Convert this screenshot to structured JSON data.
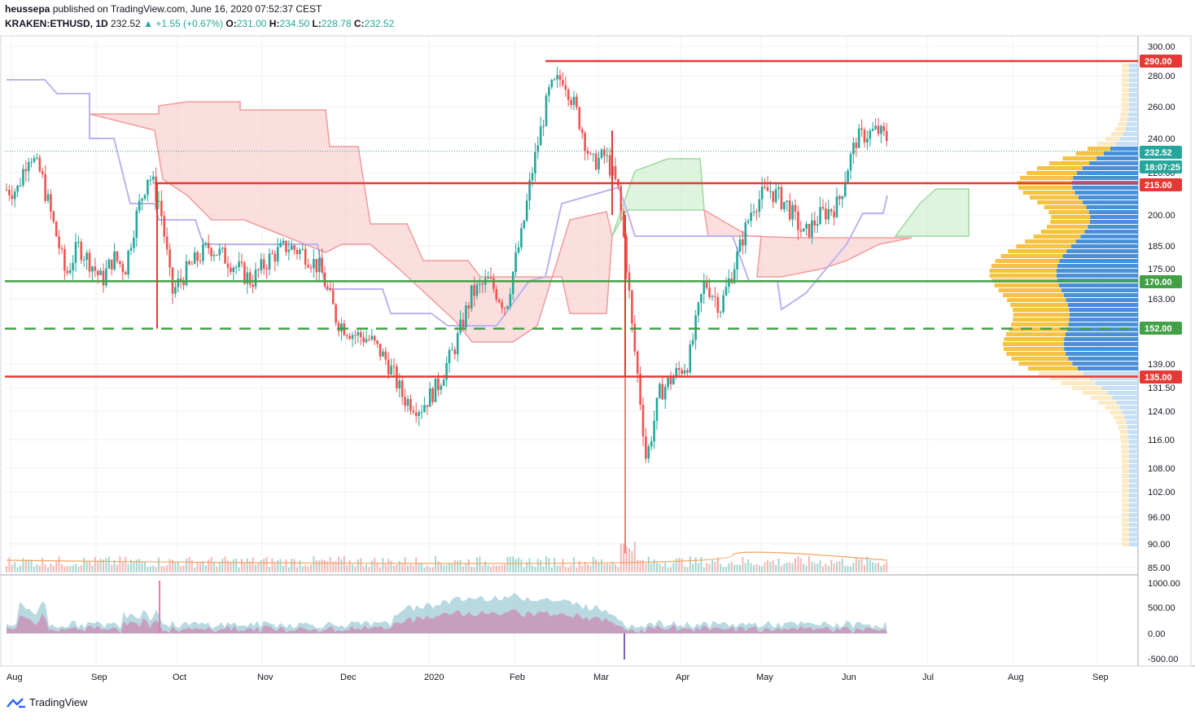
{
  "header": {
    "author": "heussepa",
    "published_text": "published on TradingView.com, June 16, 2020 07:52:37 CEST",
    "symbol": "KRAKEN:ETHUSD, 1D",
    "last": "232.52",
    "change": "+1.55 (+0.67%)",
    "o_label": "O:",
    "o_value": "231.00",
    "h_label": "H:",
    "h_value": "234.50",
    "l_label": "L:",
    "l_value": "228.78",
    "c_label": "C:",
    "c_value": "232.52"
  },
  "footer": {
    "brand": "TradingView"
  },
  "colors": {
    "up": "#26a69a",
    "down": "#ef5350",
    "level_red": "#e53935",
    "level_green": "#43a047",
    "cloud_red": "#f8c9c9",
    "cloud_green": "#c9ecc9",
    "vp_blue": "#4a90d9",
    "vp_yellow": "#f5c242"
  },
  "chart_data": {
    "type": "candlestick",
    "price_axis_ticks": [
      "300.00",
      "280.00",
      "260.00",
      "240.00",
      "220.00",
      "200.00",
      "185.00",
      "175.00",
      "163.00",
      "139.00",
      "131.50",
      "124.00",
      "116.00",
      "108.00",
      "102.00",
      "96.00",
      "90.00",
      "85.00"
    ],
    "price_tags": [
      {
        "label": "290.00",
        "kind": "level_red",
        "value": 290
      },
      {
        "label": "232.52",
        "kind": "last",
        "value": 232.52
      },
      {
        "label": "18:07:25",
        "kind": "countdown",
        "value": 226
      },
      {
        "label": "215.00",
        "kind": "level_red",
        "value": 215
      },
      {
        "label": "170.00",
        "kind": "level_green",
        "value": 170
      },
      {
        "label": "152.00",
        "kind": "level_green",
        "value": 152
      },
      {
        "label": "135.00",
        "kind": "level_red",
        "value": 135
      }
    ],
    "levels": [
      {
        "value": 290,
        "style": "solid",
        "color": "red",
        "start": "Feb"
      },
      {
        "value": 215,
        "style": "solid",
        "color": "red",
        "start": "Sep"
      },
      {
        "value": 170,
        "style": "solid",
        "color": "green",
        "start": "Aug"
      },
      {
        "value": 152,
        "style": "dashed",
        "color": "green",
        "start": "Aug"
      },
      {
        "value": 135,
        "style": "solid",
        "color": "red",
        "start": "Aug"
      }
    ],
    "x_labels": [
      "Aug",
      "Sep",
      "Oct",
      "Nov",
      "Dec",
      "2020",
      "Feb",
      "Mar",
      "Apr",
      "May",
      "Jun",
      "Jul",
      "Aug",
      "Sep"
    ],
    "osc_axis_ticks": [
      "1000.00",
      "500.00",
      "0.00",
      "-500.00"
    ],
    "close_path": [
      [
        "Aug",
        212
      ],
      [
        "Aug",
        232
      ],
      [
        "Aug",
        218
      ],
      [
        "Aug",
        195
      ],
      [
        "Aug",
        172
      ],
      [
        "Aug",
        185
      ],
      [
        "Aug",
        178
      ],
      [
        "Sep",
        170
      ],
      [
        "Sep",
        180
      ],
      [
        "Sep",
        175
      ],
      [
        "Sep",
        200
      ],
      [
        "Sep",
        220
      ],
      [
        "Sep",
        205
      ],
      [
        "Sep",
        165
      ],
      [
        "Oct",
        175
      ],
      [
        "Oct",
        185
      ],
      [
        "Oct",
        178
      ],
      [
        "Oct",
        170
      ],
      [
        "Nov",
        180
      ],
      [
        "Nov",
        185
      ],
      [
        "Nov",
        182
      ],
      [
        "Nov",
        175
      ],
      [
        "Nov",
        155
      ],
      [
        "Dec",
        150
      ],
      [
        "Dec",
        148
      ],
      [
        "Dec",
        140
      ],
      [
        "Dec",
        128
      ],
      [
        "Dec",
        125
      ],
      [
        "2020",
        132
      ],
      [
        "2020",
        145
      ],
      [
        "2020",
        165
      ],
      [
        "2020",
        170
      ],
      [
        "2020",
        160
      ],
      [
        "Feb",
        190
      ],
      [
        "Feb",
        230
      ],
      [
        "Feb",
        270
      ],
      [
        "Feb",
        280
      ],
      [
        "Feb",
        255
      ],
      [
        "Feb",
        225
      ],
      [
        "Mar",
        230
      ],
      [
        "Mar",
        210
      ],
      [
        "Mar",
        150
      ],
      [
        "Mar",
        110
      ],
      [
        "Mar",
        130
      ],
      [
        "Mar",
        135
      ],
      [
        "Apr",
        140
      ],
      [
        "Apr",
        170
      ],
      [
        "Apr",
        160
      ],
      [
        "Apr",
        180
      ],
      [
        "Apr",
        205
      ],
      [
        "May",
        212
      ],
      [
        "May",
        205
      ],
      [
        "May",
        190
      ],
      [
        "May",
        200
      ],
      [
        "May",
        205
      ],
      [
        "Jun",
        240
      ],
      [
        "Jun",
        245
      ],
      [
        "Jun",
        235
      ],
      [
        "Jun",
        232.52
      ]
    ]
  }
}
